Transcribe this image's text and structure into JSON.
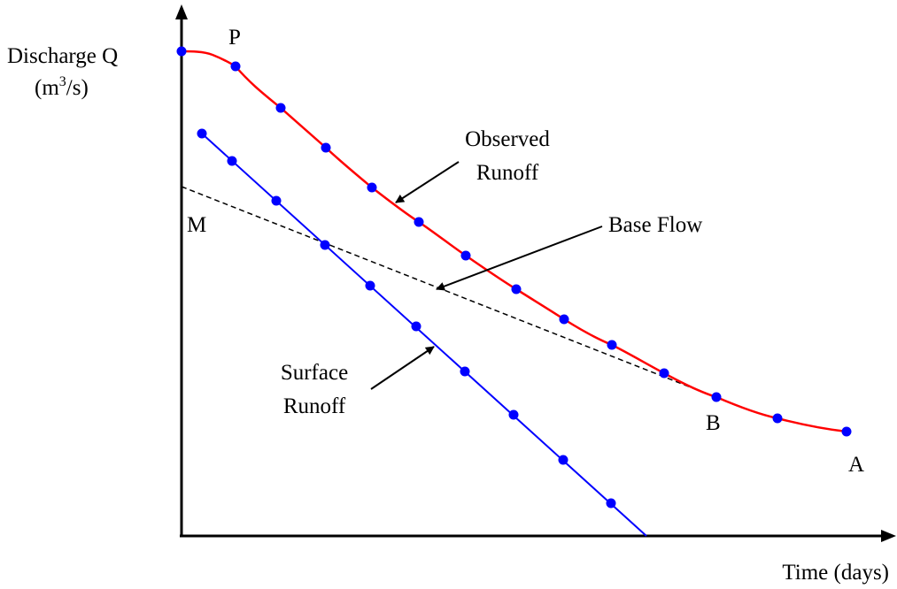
{
  "labels": {
    "y_axis_line1": "Discharge  Q",
    "y_axis_unit_open": "(m",
    "y_axis_unit_sup": "3",
    "y_axis_unit_close": "/s)",
    "x_axis": "Time (days)",
    "point_p": "P",
    "point_m": "M",
    "point_b": "B",
    "point_a": "A",
    "observed_line1": "Observed",
    "observed_line2": "Runoff",
    "base_flow": "Base Flow",
    "surface_line1": "Surface",
    "surface_line2": "Runoff"
  },
  "colors": {
    "observed_curve": "#ff0000",
    "surface_line": "#0000ff",
    "markers": "#0000ff",
    "base_flow_line": "#000000",
    "axes": "#000000"
  }
}
